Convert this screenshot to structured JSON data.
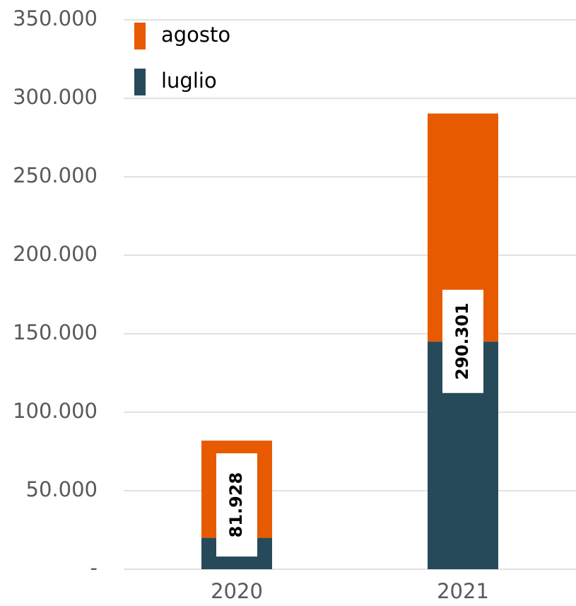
{
  "chart_data": {
    "type": "stacked_bar",
    "categories": [
      "2020",
      "2021"
    ],
    "series": [
      {
        "name": "luglio",
        "color": "#274a5a",
        "values": [
          20000,
          145000
        ]
      },
      {
        "name": "agosto",
        "color": "#e85a00",
        "values": [
          61928,
          145301
        ]
      }
    ],
    "totals": {
      "values": [
        81928,
        290301
      ],
      "value_labels": [
        "81.928",
        "290.301"
      ]
    },
    "ylim": [
      0,
      350000
    ],
    "yticks": [
      {
        "value": 0,
        "label": "-"
      },
      {
        "value": 50000,
        "label": "50.000"
      },
      {
        "value": 100000,
        "label": "100.000"
      },
      {
        "value": 150000,
        "label": "150.000"
      },
      {
        "value": 200000,
        "label": "200.000"
      },
      {
        "value": 250000,
        "label": "250.000"
      },
      {
        "value": 300000,
        "label": "300.000"
      },
      {
        "value": 350000,
        "label": "350.000"
      }
    ],
    "grid": true,
    "legend": "top-left"
  }
}
